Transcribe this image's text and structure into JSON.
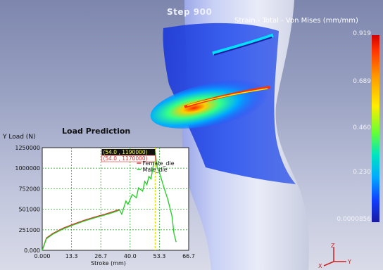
{
  "viewport": {
    "step_label": "Step  900",
    "background_top": "#7d86ad",
    "background_bottom": "#d9dbe8"
  },
  "legend": {
    "title": "Strain - Total - Von Mises (mm/mm)",
    "ticks": [
      "0.919",
      "0.689",
      "0.460",
      "0.230",
      "0.0000856"
    ],
    "colors": [
      "#d40000",
      "#ff9900",
      "#ffee00",
      "#66ff33",
      "#00e5c0",
      "#00aaff",
      "#1a1aa0"
    ]
  },
  "axes_triad": {
    "z": "Z",
    "x": "X",
    "y": "Y"
  },
  "chart_data": {
    "type": "line",
    "title": "Load Prediction",
    "ylabel": "Y Load (N)",
    "xlabel": "Stroke (mm)",
    "x_ticks": [
      "0.000",
      "13.3",
      "26.7",
      "40.0",
      "53.3",
      "66.7"
    ],
    "y_ticks": [
      "0.000",
      "251000",
      "501000",
      "752000",
      "1000000",
      "1250000"
    ],
    "xlim": [
      0,
      70
    ],
    "ylim": [
      0,
      1250000
    ],
    "grid": true,
    "marker_x": 54,
    "annotations": [
      "(54.0 , 1190000)",
      "(54.0 , 1170000)"
    ],
    "series": [
      {
        "name": "Female_die",
        "color": "#e03030",
        "x": [
          0,
          2,
          5,
          10,
          15,
          20,
          25,
          30,
          35,
          36,
          37
        ],
        "y": [
          0,
          150000,
          205000,
          270000,
          320000,
          365000,
          405000,
          440000,
          480000,
          490000,
          495000
        ]
      },
      {
        "name": "Male_die",
        "color": "#22cc22",
        "x": [
          0,
          2,
          5,
          10,
          15,
          20,
          25,
          30,
          35,
          37,
          38,
          40,
          41,
          43,
          45,
          46,
          48,
          49,
          50,
          51,
          52,
          53,
          53.5,
          54,
          55,
          56,
          58,
          60,
          62,
          63,
          64
        ],
        "y": [
          0,
          140000,
          195000,
          260000,
          310000,
          355000,
          395000,
          430000,
          470000,
          490000,
          440000,
          600000,
          560000,
          680000,
          640000,
          760000,
          720000,
          840000,
          800000,
          900000,
          870000,
          1020000,
          1100000,
          1190000,
          1000000,
          950000,
          780000,
          620000,
          420000,
          200000,
          100000
        ]
      }
    ]
  }
}
